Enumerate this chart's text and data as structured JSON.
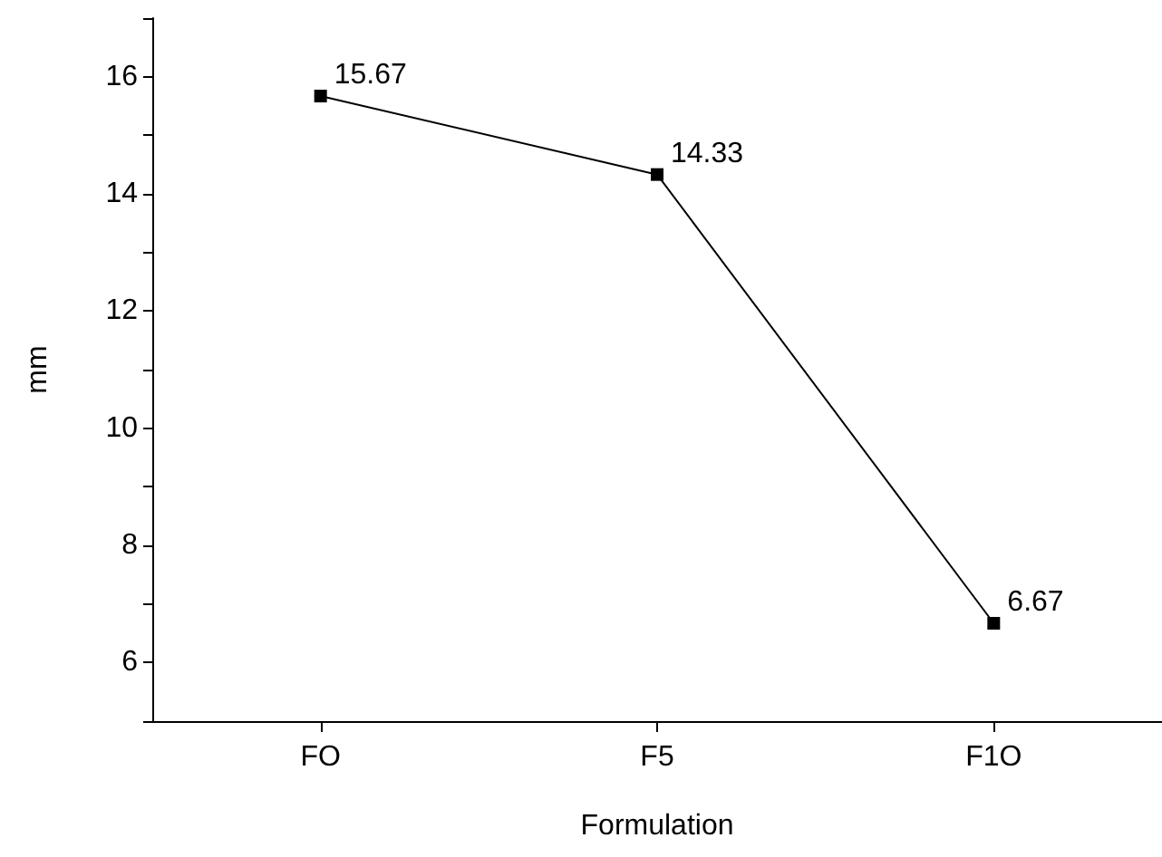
{
  "chart_data": {
    "type": "line",
    "xlabel": "Formulation",
    "ylabel": "mm",
    "categories": [
      "FO",
      "F5",
      "F1O"
    ],
    "series": [
      {
        "color": "#000000",
        "values": [
          15.67,
          14.33,
          6.67
        ]
      }
    ],
    "ylim": [
      5,
      17
    ],
    "yticks": [
      {
        "value": 5,
        "label": null
      },
      6,
      {
        "value": 7,
        "label": null
      },
      8,
      {
        "value": 9,
        "label": null
      },
      10,
      {
        "value": 11,
        "label": null
      },
      12,
      {
        "value": 13,
        "label": null
      },
      14,
      {
        "value": 15,
        "label": null
      },
      16,
      {
        "value": 17,
        "label": null
      }
    ],
    "data_labels": true,
    "marker": "square",
    "line_style": "solid"
  }
}
